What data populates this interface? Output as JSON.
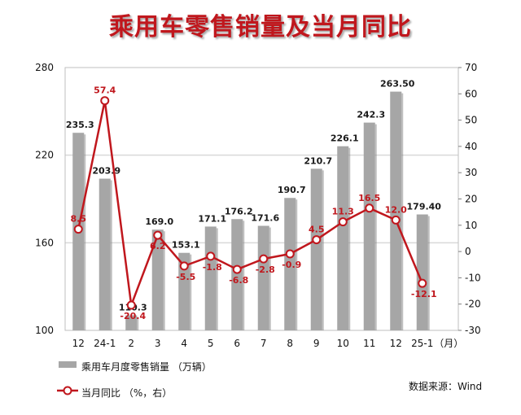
{
  "chart_data": {
    "type": "bar+line",
    "title": "乘用车零售销量及当月同比",
    "categories": [
      "12",
      "24-1",
      "2",
      "3",
      "4",
      "5",
      "6",
      "7",
      "8",
      "9",
      "10",
      "11",
      "12",
      "25-1"
    ],
    "x_unit": "（月）",
    "series": [
      {
        "name": "乘用车月度零售销量 （万辆）",
        "type": "bar",
        "axis": "left",
        "color": "#a6a6a6",
        "values": [
          235.3,
          203.9,
          110.3,
          169.0,
          153.1,
          171.1,
          176.2,
          171.6,
          190.7,
          210.7,
          226.1,
          242.3,
          263.5,
          179.4
        ],
        "labels": [
          "235.3",
          "203.9",
          "110.3",
          "169.0",
          "153.1",
          "171.1",
          "176.2",
          "171.6",
          "190.7",
          "210.7",
          "226.1",
          "242.3",
          "263.50",
          "179.40"
        ]
      },
      {
        "name": "当月同比 （%，右）",
        "type": "line",
        "axis": "right",
        "color": "#c0171d",
        "values": [
          8.5,
          57.4,
          -20.4,
          6.2,
          -5.5,
          -1.8,
          -6.8,
          -2.8,
          -0.9,
          4.5,
          11.3,
          16.5,
          12.0,
          -12.1
        ],
        "labels": [
          "8.5",
          "57.4",
          "-20.4",
          "6.2",
          "-5.5",
          "-1.8",
          "-6.8",
          "-2.8",
          "-0.9",
          "4.5",
          "11.3",
          "16.5",
          "12.0",
          "-12.1"
        ]
      }
    ],
    "y_left": {
      "ylim": [
        100,
        280
      ],
      "ticks": [
        100,
        160,
        220,
        280
      ]
    },
    "y_right": {
      "ylim": [
        -30,
        70
      ],
      "ticks": [
        -30,
        -20,
        -10,
        0,
        10,
        20,
        30,
        40,
        50,
        60,
        70
      ]
    },
    "grid": "horizontal at left-axis ticks",
    "legend": "bottom-left"
  },
  "source": "数据来源：Wind",
  "colors": {
    "title": "#c0171d",
    "bar": "#a6a6a6",
    "line": "#c0171d",
    "grid": "#d9d9d9"
  }
}
